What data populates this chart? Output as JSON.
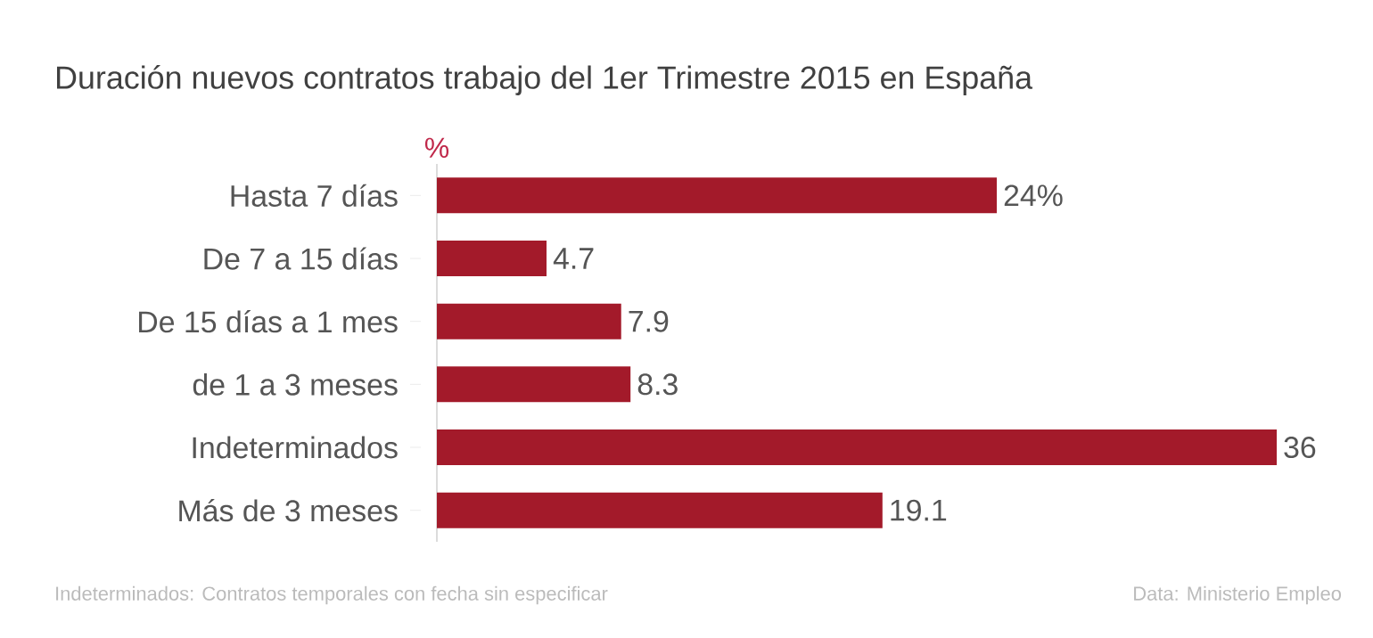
{
  "chart_data": {
    "type": "bar",
    "orientation": "horizontal",
    "title": "Duración nuevos contratos trabajo del 1er Trimestre 2015 en España",
    "xlabel": "%",
    "categories": [
      "Hasta 7 días",
      "De 7 a 15 días",
      "De 15 días a 1 mes",
      "de 1 a 3 meses",
      "Indeterminados",
      "Más de 3 meses"
    ],
    "values": [
      24,
      4.7,
      7.9,
      8.3,
      36,
      19.1
    ],
    "value_labels": [
      "24%",
      "4.7",
      "7.9",
      "8.3",
      "36",
      "19.1"
    ],
    "color": "#a31a2a",
    "tick_labels": "y",
    "annotations": [
      "Indeterminados: Contratos temporales con fecha sin especificar",
      "Data: Ministerio Empleo"
    ]
  }
}
